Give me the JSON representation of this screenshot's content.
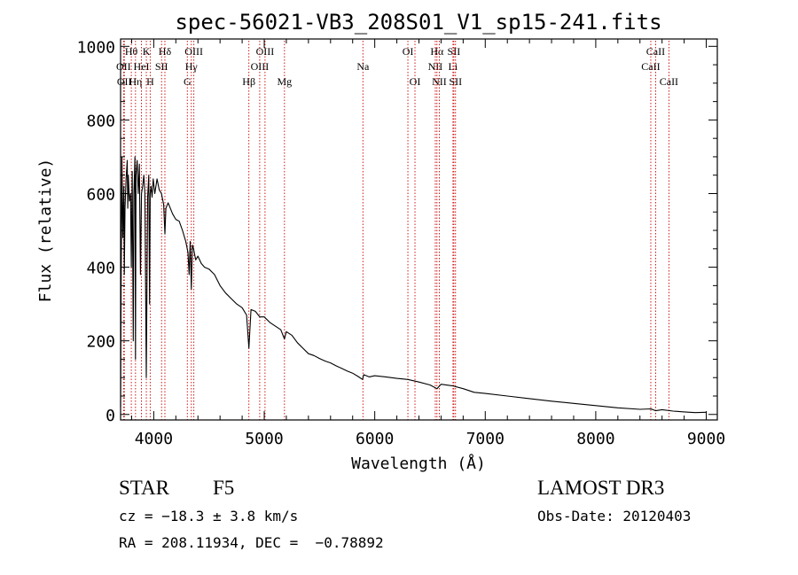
{
  "chart_data": {
    "type": "line",
    "title": "spec-56021-VB3_208S01_V1_sp15-241.fits",
    "xlabel": "Wavelength (Å)",
    "ylabel": "Flux (relative)",
    "xlim": [
      3700,
      9100
    ],
    "ylim": [
      -15,
      1020
    ],
    "xticks": [
      4000,
      5000,
      6000,
      7000,
      8000,
      9000
    ],
    "xtick_labels": [
      "4000",
      "5000",
      "6000",
      "7000",
      "8000",
      "9000"
    ],
    "yticks": [
      0,
      200,
      400,
      600,
      800,
      1000
    ],
    "ytick_labels": [
      "0",
      "200",
      "400",
      "600",
      "800",
      "1000"
    ],
    "grid": false,
    "series": [
      {
        "name": "spectrum",
        "color": "#000000",
        "x": [
          3700,
          3705,
          3712,
          3720,
          3730,
          3734,
          3740,
          3750,
          3760,
          3765,
          3770,
          3780,
          3790,
          3797,
          3805,
          3815,
          3820,
          3830,
          3835,
          3840,
          3850,
          3860,
          3870,
          3880,
          3889,
          3900,
          3910,
          3920,
          3933,
          3945,
          3955,
          3962,
          3968,
          3975,
          3985,
          3995,
          4010,
          4030,
          4050,
          4070,
          4090,
          4101,
          4110,
          4130,
          4150,
          4170,
          4200,
          4230,
          4260,
          4290,
          4310,
          4320,
          4330,
          4340,
          4350,
          4360,
          4380,
          4400,
          4430,
          4460,
          4500,
          4550,
          4600,
          4650,
          4700,
          4750,
          4800,
          4840,
          4861,
          4880,
          4920,
          4960,
          5000,
          5050,
          5100,
          5150,
          5183,
          5200,
          5250,
          5300,
          5350,
          5400,
          5450,
          5500,
          5550,
          5600,
          5650,
          5700,
          5750,
          5800,
          5850,
          5890,
          5900,
          5950,
          6000,
          6100,
          6200,
          6300,
          6400,
          6500,
          6563,
          6600,
          6700,
          6800,
          6900,
          7000,
          7200,
          7400,
          7600,
          7800,
          8000,
          8200,
          8400,
          8500,
          8542,
          8600,
          8700,
          8800,
          8900,
          9000
        ],
        "y": [
          20,
          350,
          700,
          480,
          620,
          380,
          560,
          640,
          690,
          560,
          650,
          580,
          600,
          400,
          660,
          200,
          600,
          700,
          150,
          650,
          690,
          600,
          680,
          380,
          600,
          620,
          650,
          600,
          100,
          590,
          650,
          300,
          600,
          620,
          590,
          640,
          600,
          640,
          610,
          600,
          570,
          490,
          560,
          575,
          560,
          545,
          530,
          525,
          500,
          470,
          440,
          380,
          470,
          340,
          460,
          450,
          420,
          430,
          410,
          400,
          395,
          380,
          350,
          330,
          315,
          300,
          290,
          270,
          180,
          285,
          280,
          265,
          265,
          250,
          240,
          230,
          205,
          225,
          215,
          195,
          180,
          165,
          160,
          152,
          145,
          140,
          132,
          125,
          118,
          112,
          103,
          95,
          108,
          102,
          105,
          102,
          98,
          95,
          88,
          80,
          70,
          82,
          78,
          70,
          60,
          57,
          50,
          43,
          36,
          30,
          24,
          18,
          14,
          15,
          10,
          13,
          9,
          7,
          5,
          6
        ]
      }
    ],
    "lines": [
      {
        "wavelength": 3727,
        "name": "OII",
        "label": "OII",
        "row": 2
      },
      {
        "wavelength": 3734,
        "name": "OII",
        "label": "OII",
        "row": 3
      },
      {
        "wavelength": 3797,
        "name": "Hθ",
        "label": "Hθ",
        "row": 1
      },
      {
        "wavelength": 3835,
        "name": "Hη",
        "label": "Hη",
        "row": 3
      },
      {
        "wavelength": 3889,
        "name": "HeI",
        "label": "HeI",
        "row": 2
      },
      {
        "wavelength": 3933,
        "name": "K",
        "label": "K",
        "row": 1
      },
      {
        "wavelength": 3968,
        "name": "H",
        "label": "H",
        "row": 3
      },
      {
        "wavelength": 4071,
        "name": "SII",
        "label": "SII",
        "row": 2
      },
      {
        "wavelength": 4101,
        "name": "Hδ",
        "label": "Hδ",
        "row": 1
      },
      {
        "wavelength": 4304,
        "name": "G",
        "label": "G",
        "row": 3
      },
      {
        "wavelength": 4340,
        "name": "Hγ",
        "label": "Hγ",
        "row": 2
      },
      {
        "wavelength": 4363,
        "name": "OIII",
        "label": "OIII",
        "row": 1
      },
      {
        "wavelength": 4861,
        "name": "Hβ",
        "label": "Hβ",
        "row": 3
      },
      {
        "wavelength": 4959,
        "name": "OIII",
        "label": "OIII",
        "row": 2
      },
      {
        "wavelength": 5007,
        "name": "OIII",
        "label": "OIII",
        "row": 1
      },
      {
        "wavelength": 5183,
        "name": "Mg",
        "label": "Mg",
        "row": 3
      },
      {
        "wavelength": 5893,
        "name": "Na",
        "label": "Na",
        "row": 2
      },
      {
        "wavelength": 6300,
        "name": "OI",
        "label": "OI",
        "row": 1
      },
      {
        "wavelength": 6364,
        "name": "OI",
        "label": "OI",
        "row": 3
      },
      {
        "wavelength": 6548,
        "name": "NII",
        "label": "NII",
        "row": 2
      },
      {
        "wavelength": 6563,
        "name": "Hα",
        "label": "Hα",
        "row": 1
      },
      {
        "wavelength": 6584,
        "name": "NII",
        "label": "NII",
        "row": 3
      },
      {
        "wavelength": 6708,
        "name": "Li",
        "label": "Li",
        "row": 2
      },
      {
        "wavelength": 6716,
        "name": "SII",
        "label": "SII",
        "row": 1
      },
      {
        "wavelength": 6731,
        "name": "SII",
        "label": "SII",
        "row": 3
      },
      {
        "wavelength": 8498,
        "name": "CaII",
        "label": "CaII",
        "row": 2
      },
      {
        "wavelength": 8542,
        "name": "CaII",
        "label": "CaII",
        "row": 1
      },
      {
        "wavelength": 8662,
        "name": "CaII",
        "label": "CaII",
        "row": 3
      }
    ],
    "line_color": "#cc0000",
    "axis_color": "#000000"
  },
  "footer": {
    "object_class": "STAR",
    "subclass": "F5",
    "survey": "LAMOST DR3",
    "redshift": "cz = −18.3 ± 3.8 km/s",
    "obs_date": "Obs-Date: 20120403",
    "coordinates": "RA = 208.11934, DEC =  −0.78892"
  }
}
